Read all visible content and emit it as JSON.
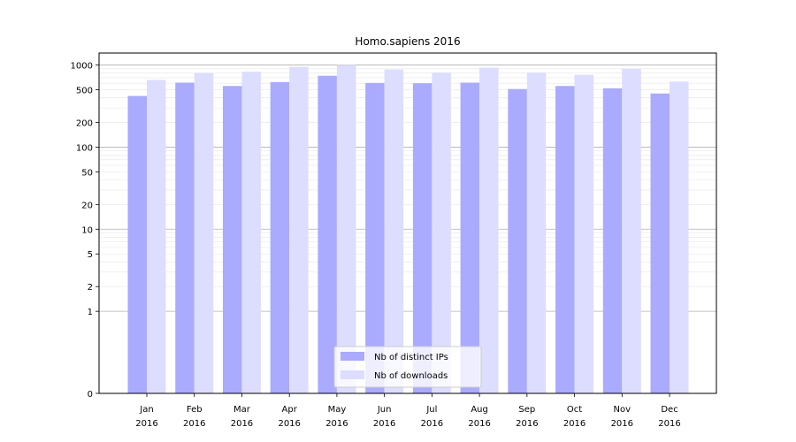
{
  "chart_data": {
    "type": "bar",
    "title": "Homo.sapiens 2016",
    "xlabel": "",
    "ylabel": "",
    "yscale": "symlog",
    "categories": [
      [
        "Jan",
        "2016"
      ],
      [
        "Feb",
        "2016"
      ],
      [
        "Mar",
        "2016"
      ],
      [
        "Apr",
        "2016"
      ],
      [
        "May",
        "2016"
      ],
      [
        "Jun",
        "2016"
      ],
      [
        "Jul",
        "2016"
      ],
      [
        "Aug",
        "2016"
      ],
      [
        "Sep",
        "2016"
      ],
      [
        "Oct",
        "2016"
      ],
      [
        "Nov",
        "2016"
      ],
      [
        "Dec",
        "2016"
      ]
    ],
    "y_ticks": [
      "0",
      "1",
      "2",
      "5",
      "10",
      "20",
      "50",
      "100",
      "200",
      "500",
      "1000"
    ],
    "ylim": [
      0,
      1400
    ],
    "grid": true,
    "legend_position": "bottom-center",
    "series": [
      {
        "name": "Nb of distinct IPs",
        "color": "#aaaaff",
        "values": [
          420,
          610,
          555,
          620,
          740,
          605,
          600,
          610,
          510,
          555,
          520,
          450
        ]
      },
      {
        "name": "Nb of downloads",
        "color": "#ddddff",
        "values": [
          660,
          800,
          830,
          950,
          1000,
          880,
          810,
          930,
          810,
          760,
          900,
          630
        ]
      }
    ]
  }
}
